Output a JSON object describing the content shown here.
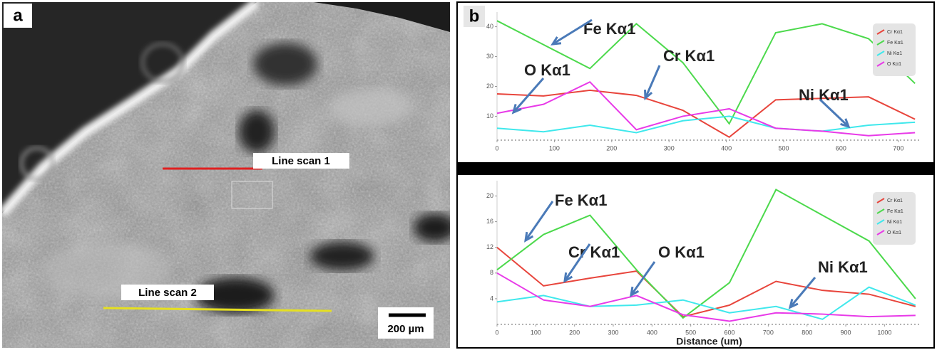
{
  "panel_a": {
    "label": "a",
    "line_scan_1": "Line scan 1",
    "line_scan_2": "Line scan 2",
    "scale_bar": "200 µm"
  },
  "panel_b": {
    "label": "b"
  },
  "chart_data": [
    {
      "type": "line",
      "legend": "upper right",
      "grid": false,
      "x": [
        0,
        81,
        162,
        243,
        324,
        405,
        486,
        567,
        648,
        729
      ],
      "xlim": [
        0,
        740
      ],
      "xticks": [
        0,
        100,
        200,
        300,
        400,
        500,
        600,
        700
      ],
      "ylim": [
        2,
        43
      ],
      "yticks": [
        10,
        20,
        30,
        40
      ],
      "series": [
        {
          "name": "Cr Kα1",
          "color": "#e8453c",
          "values": [
            17.5,
            16.8,
            18.7,
            17,
            12,
            3,
            15.5,
            16,
            16.5,
            9
          ]
        },
        {
          "name": "Fe Kα1",
          "color": "#4cd94c",
          "values": [
            42,
            34,
            26,
            41,
            28,
            7.5,
            38,
            41,
            36,
            21
          ]
        },
        {
          "name": "Ni Kα1",
          "color": "#3fe8ec",
          "values": [
            6,
            4.8,
            7,
            4.5,
            8.5,
            10,
            6,
            5,
            7,
            8
          ]
        },
        {
          "name": "O Kα1",
          "color": "#e83ae8",
          "values": [
            11,
            14,
            21.5,
            5.5,
            10,
            12.5,
            6,
            5,
            3.5,
            4.5
          ]
        }
      ],
      "annotations": [
        "Fe Kα1",
        "O Kα1",
        "Cr Kα1",
        "Ni Kα1"
      ]
    },
    {
      "type": "line",
      "legend": "upper right",
      "grid": false,
      "xlabel": "Distance (um)",
      "x": [
        0,
        120,
        240,
        360,
        480,
        600,
        720,
        840,
        960,
        1080
      ],
      "xlim": [
        0,
        1095
      ],
      "xticks": [
        0,
        100,
        200,
        300,
        400,
        500,
        600,
        700,
        800,
        900,
        1000
      ],
      "ylim": [
        0,
        21.5
      ],
      "yticks": [
        4,
        8,
        12,
        16,
        20
      ],
      "series": [
        {
          "name": "Cr Kα1",
          "color": "#e8453c",
          "values": [
            12,
            6,
            7.2,
            8.3,
            1.2,
            3,
            6.7,
            5.3,
            4.7,
            2.8
          ]
        },
        {
          "name": "Fe Kα1",
          "color": "#4cd94c",
          "values": [
            8.5,
            14,
            17,
            8.5,
            1,
            6.5,
            21,
            17,
            13,
            4
          ]
        },
        {
          "name": "Ni Kα1",
          "color": "#3fe8ec",
          "values": [
            3.5,
            4.5,
            2.8,
            3,
            3.8,
            1.8,
            2.8,
            0.8,
            5.8,
            3
          ]
        },
        {
          "name": "O Kα1",
          "color": "#e83ae8",
          "values": [
            8,
            3.8,
            2.8,
            4.5,
            1.5,
            0.5,
            1.8,
            1.6,
            1.2,
            1.4
          ]
        }
      ],
      "annotations": [
        "Fe Kα1",
        "Cr Kα1",
        "O Kα1",
        "Ni Kα1"
      ]
    }
  ]
}
